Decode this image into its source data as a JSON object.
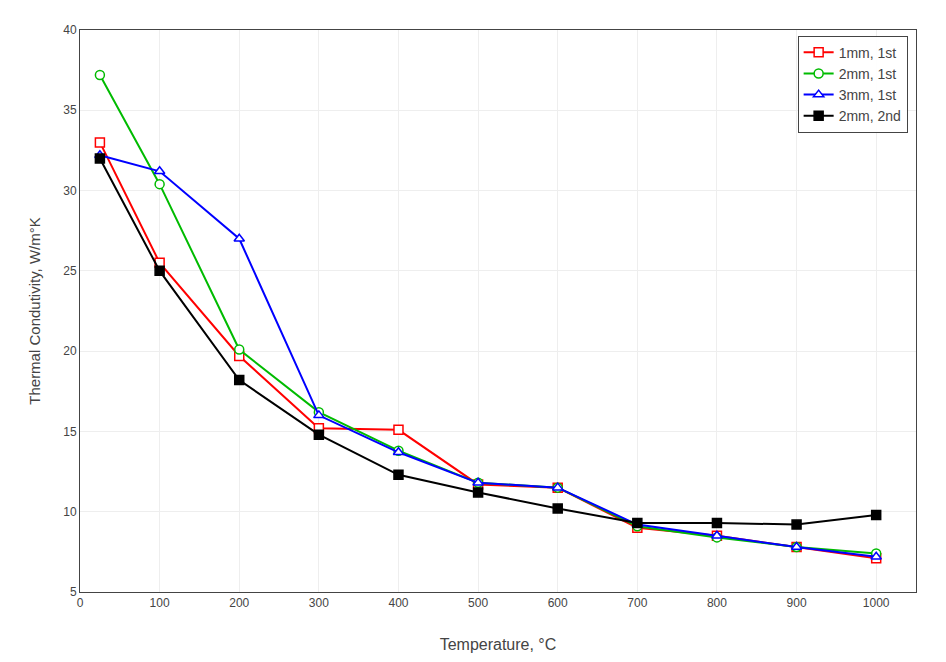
{
  "chart_data": {
    "type": "line",
    "xlabel": "Temperature, °C",
    "ylabel": "Thermal Condutivity, W/m°K",
    "x": [
      25,
      100,
      200,
      300,
      400,
      500,
      600,
      700,
      800,
      900,
      1000
    ],
    "series": [
      {
        "name": "1mm, 1st",
        "color": "#ff0000",
        "marker": "square-open",
        "values": [
          33.0,
          25.5,
          19.7,
          15.2,
          15.1,
          11.7,
          11.5,
          9.0,
          8.5,
          7.8,
          7.1
        ]
      },
      {
        "name": "2mm, 1st",
        "color": "#00bb00",
        "marker": "circle-open",
        "values": [
          37.2,
          30.4,
          20.1,
          16.2,
          13.8,
          11.8,
          11.5,
          9.1,
          8.4,
          7.8,
          7.4
        ]
      },
      {
        "name": "3mm, 1st",
        "color": "#0000ff",
        "marker": "triangle-up-open",
        "values": [
          32.2,
          31.2,
          27.0,
          16.0,
          13.7,
          11.8,
          11.5,
          9.2,
          8.5,
          7.8,
          7.2
        ]
      },
      {
        "name": "2mm, 2nd",
        "color": "#000000",
        "marker": "square",
        "values": [
          32.0,
          25.0,
          18.2,
          14.8,
          12.3,
          11.2,
          10.2,
          9.3,
          9.3,
          9.2,
          9.8
        ]
      }
    ],
    "xlim": [
      0,
      1050
    ],
    "ylim": [
      5,
      40
    ],
    "xticks": [
      0,
      100,
      200,
      300,
      400,
      500,
      600,
      700,
      800,
      900,
      1000
    ],
    "yticks": [
      5,
      10,
      15,
      20,
      25,
      30,
      35,
      40
    ],
    "grid": true,
    "legend": "upper right"
  }
}
